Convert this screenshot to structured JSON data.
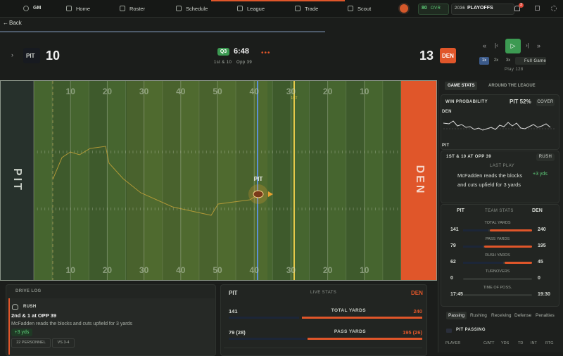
{
  "nav": {
    "gm": "GM",
    "items": [
      "Home",
      "Roster",
      "Schedule",
      "League",
      "Trade",
      "Scout"
    ],
    "ovr": "80",
    "ovr_label": "OVR",
    "season": "2036",
    "phase": "PLAYOFFS",
    "notifications": "3"
  },
  "back": "Back",
  "scoreboard": {
    "home": {
      "abbr": "PIT",
      "score": "10"
    },
    "quarter": "Q3",
    "clock": "6:48",
    "down": "1st & 10",
    "spot": "Opp 39",
    "away": {
      "abbr": "DEN",
      "score": "13"
    },
    "speeds": [
      "1x",
      "2x",
      "3x"
    ],
    "full_game": "Full Game",
    "play": "Play 128"
  },
  "field": {
    "yard_numbers": [
      "10",
      "20",
      "30",
      "40",
      "50",
      "40",
      "30",
      "20",
      "10"
    ],
    "first_down": "1ST",
    "ball_team": "PIT",
    "left_endzone": "PIT",
    "right_endzone": "DEN"
  },
  "sidebar": {
    "tabs": [
      "GAME STATS",
      "AROUND THE LEAGUE"
    ],
    "win_prob": {
      "title": "WIN PROBABILITY",
      "value": "PIT 52%",
      "cover": "COVER",
      "top": "DEN",
      "bottom": "PIT"
    },
    "situation": {
      "text": "1ST & 10 AT OPP 39",
      "type": "RUSH",
      "last_play": "LAST PLAY",
      "desc": "McFadden reads the blocks and cuts upfield for 3 yards",
      "gain": "+3 yds"
    },
    "team_stats": {
      "home": "PIT",
      "title": "TEAM STATS",
      "away": "DEN",
      "rows": [
        {
          "label": "TOTAL YARDS",
          "home": 141,
          "away": 240
        },
        {
          "label": "PASS YARDS",
          "home": 79,
          "away": 195
        },
        {
          "label": "RUSH YARDS",
          "home": 62,
          "away": 45
        },
        {
          "label": "TURNOVERS",
          "home": 0,
          "away": 0
        },
        {
          "label": "TIME OF POSS.",
          "home": "17:45",
          "away": "19:30"
        }
      ]
    },
    "stat_tabs": [
      "Passing",
      "Rushing",
      "Receiving",
      "Defense",
      "Penalties"
    ],
    "passing": {
      "title": "PIT PASSING",
      "columns": [
        "PLAYER",
        "C/ATT",
        "YDS",
        "TD",
        "INT",
        "RTG"
      ]
    }
  },
  "drive_log": {
    "title": "DRIVE LOG",
    "type": "RUSH",
    "situation": "2nd & 1 at OPP 39",
    "desc": "McFadden reads the blocks and cuts upfield for 3 yards",
    "gain": "+3 yds",
    "tags": [
      "22 PERSONNEL",
      "VS 3-4"
    ]
  },
  "live_stats": {
    "home": "PIT",
    "title": "LIVE STATS",
    "away": "DEN",
    "rows": [
      {
        "label": "TOTAL YARDS",
        "home": "141",
        "away": "240"
      },
      {
        "label": "PASS YARDS",
        "home": "79 (28)",
        "away": "195 (26)"
      }
    ]
  }
}
